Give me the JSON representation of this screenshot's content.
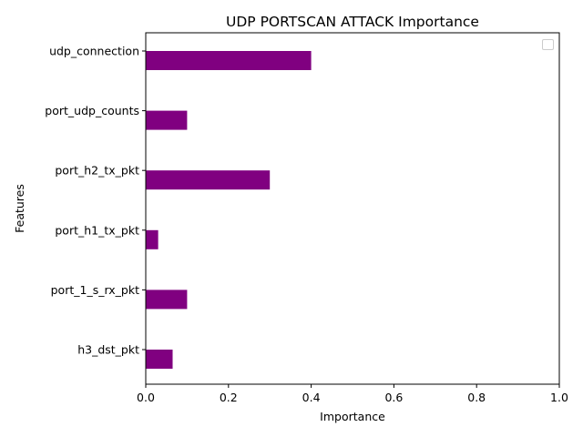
{
  "chart_data": {
    "type": "bar",
    "orientation": "horizontal",
    "title": "UDP PORTSCAN ATTACK Importance",
    "xlabel": "Importance",
    "ylabel": "Features",
    "categories": [
      "h3_dst_pkt",
      "port_1_s_rx_pkt",
      "port_h1_tx_pkt",
      "port_h2_tx_pkt",
      "port_udp_counts",
      "udp_connection"
    ],
    "values": [
      0.065,
      0.1,
      0.03,
      0.3,
      0.1,
      0.4
    ],
    "xlim": [
      0.0,
      1.0
    ],
    "xticks": [
      "0.0",
      "0.2",
      "0.4",
      "0.6",
      "0.8",
      "1.0"
    ],
    "bar_color": "#800080",
    "grid": false,
    "legend": {
      "placement": "top-right",
      "entries": []
    }
  }
}
